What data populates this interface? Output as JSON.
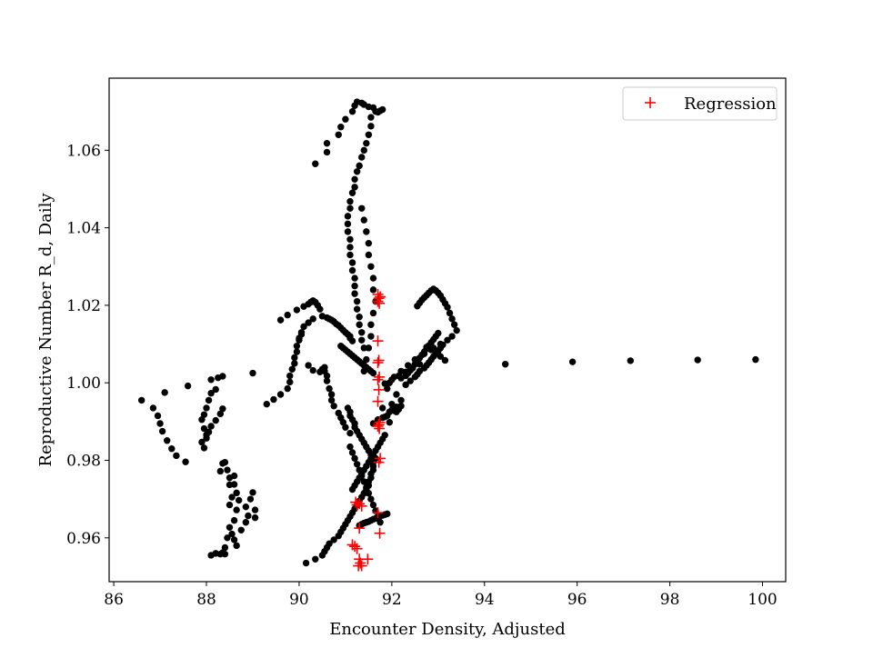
{
  "chart_data": {
    "type": "scatter",
    "title": "",
    "xlabel": "Encounter Density, Adjusted",
    "ylabel": "Reproductive Number R_d, Daily",
    "xlim": [
      85.9,
      100.5
    ],
    "ylim": [
      0.9487,
      1.0786
    ],
    "x_ticks": [
      86,
      88,
      90,
      92,
      94,
      96,
      98,
      100
    ],
    "y_ticks": [
      0.96,
      0.98,
      1.0,
      1.02,
      1.04,
      1.06
    ],
    "x_tick_labels": [
      "86",
      "88",
      "90",
      "92",
      "94",
      "96",
      "98",
      "100"
    ],
    "y_tick_labels": [
      "0.96",
      "0.98",
      "1.00",
      "1.02",
      "1.04",
      "1.06"
    ],
    "grid": false,
    "legend_position": "top-right",
    "series": [
      {
        "marker": "circle",
        "color": "#000000",
        "x": [
          86.6,
          86.85,
          86.95,
          87.0,
          87.05,
          87.15,
          87.25,
          87.35,
          87.55,
          87.9,
          87.95,
          88.0,
          88.05,
          88.1,
          88.2,
          88.3,
          88.35,
          88.3,
          88.35,
          88.4,
          88.45,
          88.5,
          88.5,
          88.55,
          88.5,
          88.5,
          88.45,
          88.4,
          88.35,
          88.4,
          88.3,
          88.2,
          88.1,
          88.6,
          88.6,
          88.65,
          88.7,
          88.65,
          88.6,
          88.55,
          88.6,
          88.65,
          88.75,
          88.85,
          88.9,
          88.85,
          88.95,
          89.0,
          89.05,
          89.05,
          87.1,
          87.6,
          88.1,
          88.25,
          88.35,
          88.2,
          88.1,
          88.05,
          88.0,
          87.95,
          87.9,
          87.95,
          88.0,
          89.0,
          89.3,
          89.45,
          89.6,
          89.75,
          89.8,
          89.8,
          89.85,
          89.9,
          89.9,
          89.95,
          89.95,
          90.0,
          90.05,
          89.6,
          89.75,
          89.95,
          90.1,
          90.2,
          90.25,
          90.3,
          90.35,
          90.4,
          90.45,
          90.3,
          90.2,
          90.1,
          90.05,
          90.0,
          90.2,
          90.3,
          90.45,
          90.5,
          90.55,
          90.55,
          90.6,
          90.6,
          90.65,
          90.7,
          90.7,
          90.75,
          90.85,
          90.9,
          90.95,
          91.0,
          91.1,
          90.5,
          90.6,
          90.65,
          90.7,
          90.75,
          90.8,
          90.85,
          90.9,
          90.95,
          91.0,
          91.05,
          91.1,
          91.1,
          91.15,
          90.9,
          90.95,
          91.0,
          91.05,
          91.1,
          91.15,
          91.2,
          91.25,
          91.3,
          91.35,
          91.4,
          91.45,
          91.5,
          91.55,
          91.6,
          90.35,
          90.6,
          90.6,
          90.85,
          90.9,
          91.0,
          91.15,
          91.2,
          91.25,
          91.35,
          91.4,
          91.5,
          91.6,
          91.65,
          91.7,
          91.75,
          91.8,
          91.55,
          91.55,
          91.5,
          91.45,
          91.4,
          91.35,
          91.3,
          91.25,
          91.2,
          91.2,
          91.15,
          91.1,
          91.1,
          91.05,
          91.05,
          91.05,
          91.1,
          91.1,
          91.1,
          91.15,
          91.15,
          91.2,
          91.2,
          91.2,
          91.25,
          91.25,
          91.3,
          91.3,
          91.35,
          91.35,
          91.4,
          91.35,
          91.4,
          91.45,
          91.5,
          91.5,
          91.55,
          91.6,
          91.6,
          91.65,
          91.6,
          91.55,
          91.55,
          91.5,
          91.45,
          91.4,
          91.1,
          91.15,
          91.2,
          91.25,
          91.3,
          91.35,
          91.4,
          91.45,
          91.5,
          91.55,
          91.6,
          91.65,
          91.7,
          91.75,
          91.3,
          91.35,
          91.4,
          91.45,
          91.5,
          91.55,
          91.6,
          91.65,
          91.7,
          91.75,
          91.8,
          91.85,
          91.9,
          91.6,
          91.7,
          91.8,
          91.9,
          91.95,
          92.0,
          92.05,
          92.1,
          92.15,
          92.2,
          91.95,
          91.85,
          91.8,
          92.0,
          92.1,
          92.2,
          92.3,
          92.35,
          92.4,
          92.45,
          92.5,
          92.55,
          92.6,
          92.65,
          92.7,
          92.75,
          92.8,
          92.85,
          92.9,
          92.95,
          93.0,
          92.3,
          92.4,
          92.5,
          92.55,
          92.6,
          92.7,
          92.75,
          92.8,
          92.85,
          92.9,
          92.95,
          93.0,
          93.05,
          93.1,
          92.55,
          92.6,
          92.65,
          92.7,
          92.75,
          92.8,
          92.85,
          92.9,
          92.95,
          93.0,
          93.05,
          93.1,
          93.15,
          93.2,
          93.25,
          93.3,
          93.35,
          93.4,
          93.3,
          93.2,
          93.05,
          92.9,
          92.7,
          92.5,
          92.35,
          92.2,
          92.05,
          91.95,
          91.9,
          92.1,
          92.2,
          92.75,
          92.85,
          92.95,
          93.05,
          93.15,
          92.6,
          92.45,
          92.3,
          92.15,
          92.0,
          91.85,
          94.45,
          95.9,
          97.15,
          98.6,
          99.85,
          90.15,
          90.35,
          90.5,
          90.55,
          90.6,
          90.65,
          90.75,
          90.85,
          90.9,
          90.95,
          91.0,
          91.05,
          91.1,
          91.15,
          91.2,
          91.25,
          91.3,
          91.35,
          91.4,
          91.45,
          91.5,
          91.5,
          91.55,
          91.55,
          91.6,
          91.6,
          91.6,
          91.65,
          91.55,
          91.5,
          91.45,
          91.4,
          91.35,
          91.3,
          91.25,
          91.2,
          91.2,
          91.15,
          91.1,
          91.1,
          91.05,
          91.15,
          91.2,
          91.25,
          91.3,
          91.35,
          91.4,
          91.45,
          91.5,
          91.55,
          91.6,
          91.65,
          91.7,
          91.75,
          91.8,
          91.85
        ],
        "y": [
          0.9955,
          0.9935,
          0.9915,
          0.9895,
          0.9875,
          0.9851,
          0.983,
          0.9812,
          0.9796,
          0.9847,
          0.9832,
          0.9857,
          0.9873,
          0.9888,
          0.9903,
          0.992,
          0.9933,
          0.9772,
          0.9792,
          0.9795,
          0.9775,
          0.9755,
          0.9737,
          0.9705,
          0.9685,
          0.9627,
          0.96,
          0.9575,
          0.9562,
          0.9558,
          0.9558,
          0.956,
          0.9555,
          0.976,
          0.9738,
          0.9716,
          0.9697,
          0.9672,
          0.9645,
          0.961,
          0.9595,
          0.958,
          0.962,
          0.964,
          0.9657,
          0.968,
          0.97,
          0.9717,
          0.9672,
          0.9652,
          0.9975,
          0.9992,
          1.0008,
          1.0013,
          1.0017,
          0.9983,
          0.9973,
          0.9955,
          0.9935,
          0.9918,
          0.9905,
          0.9882,
          0.9866,
          1.0025,
          0.9945,
          0.9957,
          0.997,
          0.9985,
          1.0002,
          1.0018,
          1.0035,
          1.005,
          1.0065,
          1.008,
          1.0095,
          1.011,
          1.0125,
          1.0162,
          1.0175,
          1.0188,
          1.0197,
          1.0203,
          1.0208,
          1.0212,
          1.0208,
          1.02,
          1.019,
          1.0165,
          1.0155,
          1.0145,
          1.013,
          1.0115,
          1.0045,
          1.0032,
          1.0028,
          1.0035,
          1.004,
          1.003,
          1.0018,
          1.0005,
          0.9985,
          0.997,
          0.9955,
          0.994,
          0.9922,
          0.991,
          0.9898,
          0.9885,
          0.987,
          1.0172,
          1.0168,
          1.0165,
          1.0162,
          1.0158,
          1.0152,
          1.0148,
          1.0142,
          1.0136,
          1.013,
          1.0125,
          1.012,
          1.0115,
          1.0108,
          1.0095,
          1.009,
          1.0085,
          1.008,
          1.0075,
          1.007,
          1.0065,
          1.006,
          1.0055,
          1.005,
          1.0045,
          1.004,
          1.0035,
          1.003,
          1.0025,
          1.0565,
          1.0595,
          1.0618,
          1.064,
          1.066,
          1.068,
          1.07,
          1.0715,
          1.0725,
          1.0722,
          1.0718,
          1.0712,
          1.071,
          1.07,
          1.0698,
          1.0702,
          1.0705,
          1.0685,
          1.0662,
          1.064,
          1.0618,
          1.06,
          1.0582,
          1.056,
          1.0545,
          1.0525,
          1.0505,
          1.049,
          1.0468,
          1.045,
          1.043,
          1.041,
          1.039,
          1.037,
          1.035,
          1.033,
          1.031,
          1.029,
          1.027,
          1.025,
          1.023,
          1.021,
          1.019,
          1.017,
          1.015,
          1.013,
          1.011,
          1.009,
          1.045,
          1.042,
          1.039,
          1.036,
          1.033,
          1.03,
          1.027,
          1.024,
          1.021,
          1.018,
          1.015,
          1.012,
          1.009,
          1.006,
          1.003,
          0.9835,
          0.982,
          0.9805,
          0.979,
          0.9775,
          0.976,
          0.9745,
          0.973,
          0.9715,
          0.97,
          0.9685,
          0.967,
          0.9655,
          0.964,
          0.9632,
          0.9635,
          0.9638,
          0.964,
          0.9642,
          0.9645,
          0.9648,
          0.965,
          0.9653,
          0.9656,
          0.9658,
          0.966,
          0.9662,
          0.9895,
          0.9905,
          0.991,
          0.9915,
          0.9925,
          0.993,
          0.9928,
          0.9925,
          0.9932,
          0.994,
          0.9898,
          0.9912,
          0.9935,
          0.9945,
          0.9938,
          1.0012,
          1.0018,
          1.0025,
          1.0032,
          1.004,
          1.0048,
          1.0056,
          1.0064,
          1.0072,
          1.008,
          1.0088,
          1.0096,
          1.0104,
          1.0112,
          1.012,
          1.0128,
          0.9995,
          1.0005,
          1.0015,
          1.0022,
          1.003,
          1.0038,
          1.0045,
          1.0052,
          1.006,
          1.0068,
          1.0075,
          1.0082,
          1.009,
          1.0098,
          1.0198,
          1.0206,
          1.0214,
          1.022,
          1.0226,
          1.0232,
          1.0238,
          1.0242,
          1.0238,
          1.0232,
          1.0225,
          1.0215,
          1.0205,
          1.0195,
          1.018,
          1.0165,
          1.015,
          1.0135,
          1.012,
          1.011,
          1.01,
          1.009,
          1.0075,
          1.006,
          1.0045,
          1.003,
          1.0015,
          1.0,
          0.9985,
          0.997,
          0.9955,
          1.0092,
          1.0085,
          1.0078,
          1.0068,
          1.0058,
          1.0048,
          1.0038,
          1.0028,
          1.0018,
          1.0008,
          0.9998,
          1.0048,
          1.0054,
          1.0057,
          1.0059,
          1.006,
          0.9535,
          0.9545,
          0.9555,
          0.9565,
          0.9575,
          0.9585,
          0.9595,
          0.9605,
          0.9615,
          0.9625,
          0.9635,
          0.9645,
          0.9655,
          0.9665,
          0.9675,
          0.9685,
          0.9695,
          0.9705,
          0.9715,
          0.9725,
          0.9735,
          0.9745,
          0.9755,
          0.9765,
          0.9775,
          0.9785,
          0.9795,
          0.9805,
          0.9815,
          0.9825,
          0.9835,
          0.9845,
          0.9855,
          0.9865,
          0.9875,
          0.9885,
          0.9895,
          0.9905,
          0.9915,
          0.9925,
          0.9935,
          0.9725,
          0.9735,
          0.9745,
          0.9755,
          0.9765,
          0.9775,
          0.9785,
          0.9795,
          0.9805,
          0.9815,
          0.9825,
          0.9835,
          0.9845,
          0.9855,
          0.9865
        ]
      },
      {
        "name": "Regression",
        "marker": "plus",
        "color": "#ff0000",
        "x": [
          91.7,
          91.75,
          91.72,
          91.7,
          91.73,
          91.7,
          91.72,
          91.7,
          91.73,
          91.7,
          91.72,
          91.7,
          91.74,
          91.72,
          91.7,
          91.73,
          91.75,
          91.72,
          91.7,
          91.74,
          91.15,
          91.2,
          91.25,
          91.3,
          91.32,
          91.28,
          91.35,
          91.3,
          91.48,
          91.25,
          91.3,
          91.35,
          91.22
        ],
        "y": [
          1.0228,
          1.0222,
          1.0218,
          1.021,
          1.0205,
          1.0108,
          1.0058,
          1.0052,
          1.0015,
          1.0008,
          0.9982,
          0.9952,
          0.9898,
          0.9892,
          0.9888,
          0.9882,
          0.9805,
          0.9795,
          0.9665,
          0.9612,
          0.9582,
          0.9578,
          0.9572,
          0.9545,
          0.9535,
          0.9528,
          0.9528,
          0.9625,
          0.9545,
          0.9685,
          0.9688,
          0.9682,
          0.9692
        ]
      }
    ]
  }
}
